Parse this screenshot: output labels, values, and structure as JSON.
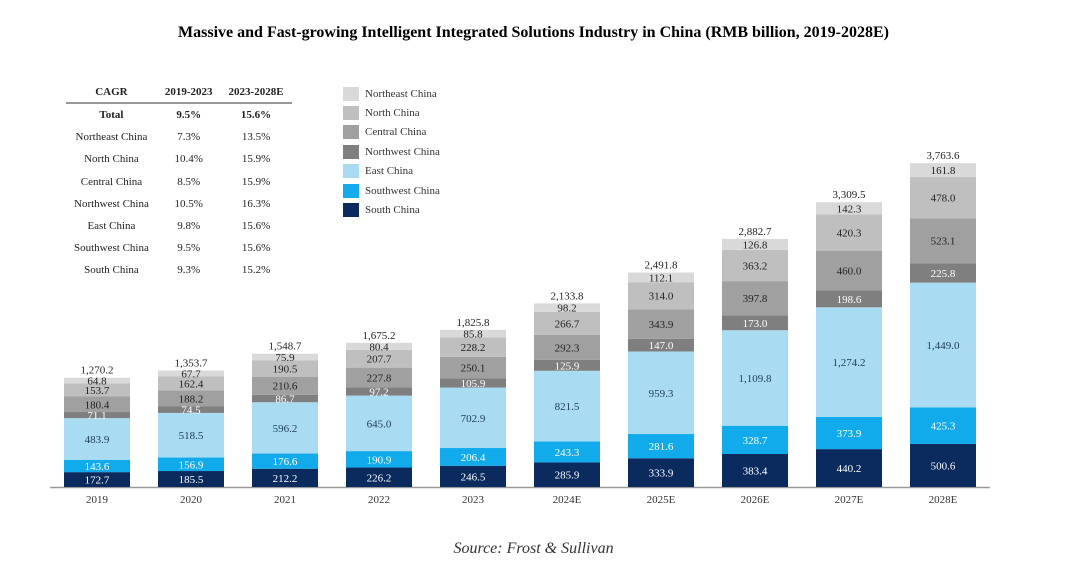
{
  "title": "Massive and Fast-growing Intelligent Integrated Solutions Industry in China (RMB billion, 2019-2028E)",
  "source": "Source: Frost & Sullivan",
  "cagr_table": {
    "headers": [
      "CAGR",
      "2019-2023",
      "2023-2028E"
    ],
    "rows": [
      {
        "region": "Total",
        "c1": "9.5%",
        "c2": "15.6%"
      },
      {
        "region": "Northeast China",
        "c1": "7.3%",
        "c2": "13.5%"
      },
      {
        "region": "North China",
        "c1": "10.4%",
        "c2": "15.9%"
      },
      {
        "region": "Central China",
        "c1": "8.5%",
        "c2": "15.9%"
      },
      {
        "region": "Northwest China",
        "c1": "10.5%",
        "c2": "16.3%"
      },
      {
        "region": "East China",
        "c1": "9.8%",
        "c2": "15.6%"
      },
      {
        "region": "Southwest China",
        "c1": "9.5%",
        "c2": "15.6%"
      },
      {
        "region": "South China",
        "c1": "9.3%",
        "c2": "15.2%"
      }
    ]
  },
  "legend": [
    {
      "name": "Northeast China",
      "color": "#d9d9d9"
    },
    {
      "name": "North China",
      "color": "#bfbfbf"
    },
    {
      "name": "Central China",
      "color": "#a0a0a0"
    },
    {
      "name": "Northwest China",
      "color": "#7f7f7f"
    },
    {
      "name": "East China",
      "color": "#a9dcf2"
    },
    {
      "name": "Southwest China",
      "color": "#11aaeb"
    },
    {
      "name": "South China",
      "color": "#0b2b5e"
    }
  ],
  "chart_data": {
    "type": "bar",
    "stacked": true,
    "title": "Massive and Fast-growing Intelligent Integrated Solutions Industry in China (RMB billion, 2019-2028E)",
    "xlabel": "",
    "ylabel": "RMB billion",
    "ylim": [
      0,
      3800
    ],
    "categories": [
      "2019",
      "2020",
      "2021",
      "2022",
      "2023",
      "2024E",
      "2025E",
      "2026E",
      "2027E",
      "2028E"
    ],
    "series": [
      {
        "name": "South China",
        "color": "#0b2b5e",
        "label_color": "#ffffff",
        "values": [
          172.7,
          185.5,
          212.2,
          226.2,
          246.5,
          285.9,
          333.9,
          383.4,
          440.2,
          500.6
        ]
      },
      {
        "name": "Southwest China",
        "color": "#11aaeb",
        "label_color": "#ffffff",
        "values": [
          143.6,
          156.9,
          176.6,
          190.9,
          206.4,
          243.3,
          281.6,
          328.7,
          373.9,
          425.3
        ]
      },
      {
        "name": "East China",
        "color": "#a9dcf2",
        "label_color": "#1f3b5a",
        "values": [
          483.9,
          518.5,
          596.2,
          645.0,
          702.9,
          821.5,
          959.3,
          1109.8,
          1274.2,
          1449.0
        ]
      },
      {
        "name": "Northwest China",
        "color": "#7f7f7f",
        "label_color": "#ffffff",
        "values": [
          71.1,
          74.5,
          86.7,
          97.2,
          105.9,
          125.9,
          147.0,
          173.0,
          198.6,
          225.8
        ]
      },
      {
        "name": "Central China",
        "color": "#a0a0a0",
        "label_color": "#222222",
        "values": [
          180.4,
          188.2,
          210.6,
          227.8,
          250.1,
          292.3,
          343.9,
          397.8,
          460.0,
          523.1
        ]
      },
      {
        "name": "North China",
        "color": "#bfbfbf",
        "label_color": "#222222",
        "values": [
          153.7,
          162.4,
          190.5,
          207.7,
          228.2,
          266.7,
          314.0,
          363.2,
          420.3,
          478.0
        ]
      },
      {
        "name": "Northeast China",
        "color": "#d9d9d9",
        "label_color": "#222222",
        "values": [
          64.8,
          67.7,
          75.9,
          80.4,
          85.8,
          98.2,
          112.1,
          126.8,
          142.3,
          161.8
        ]
      }
    ],
    "totals": [
      1270.2,
      1353.7,
      1548.7,
      1675.2,
      1825.8,
      2133.8,
      2491.8,
      2882.7,
      3309.5,
      3763.6
    ],
    "value_labels": true,
    "grid": false,
    "legend_position": "top-left"
  }
}
